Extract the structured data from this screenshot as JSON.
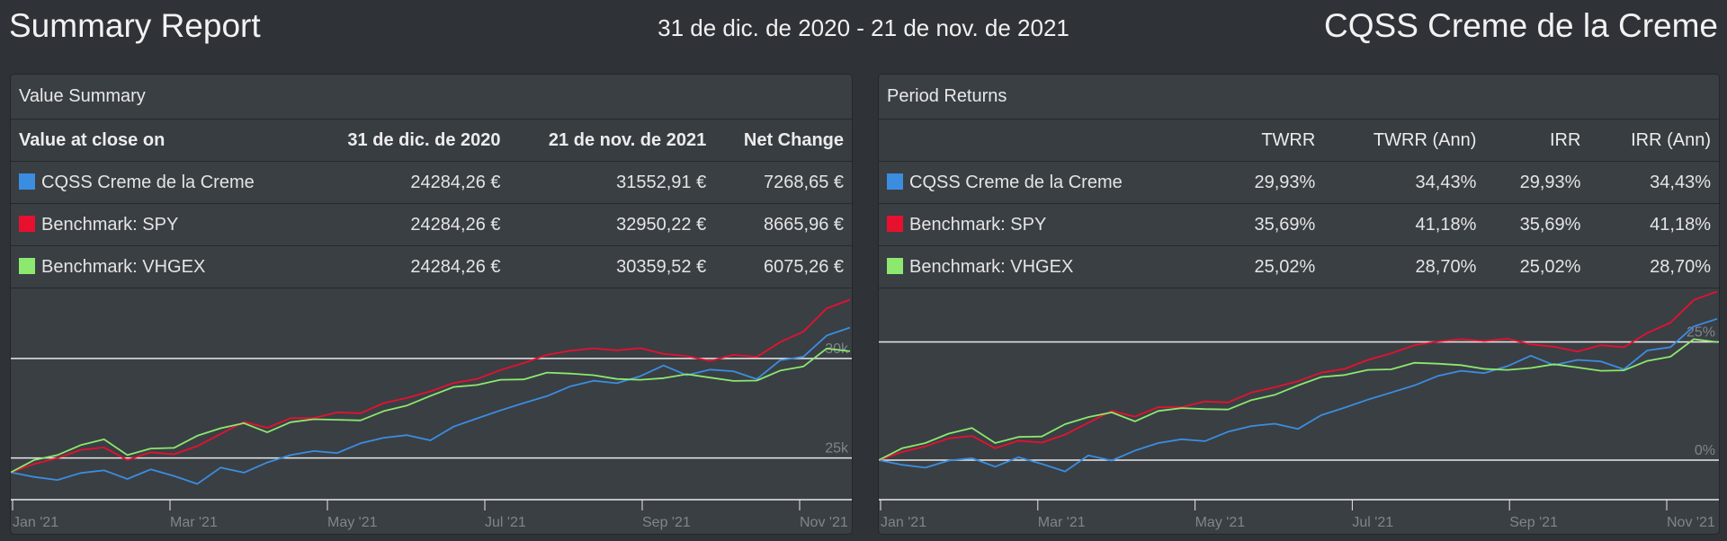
{
  "header": {
    "title": "Summary Report",
    "date_range": "31 de dic. de 2020 - 21 de nov. de 2021",
    "portfolio": "CQSS Creme de la Creme"
  },
  "value_summary": {
    "title": "Value Summary",
    "columns": [
      "Value at close on",
      "31 de dic. de 2020",
      "21 de nov. de 2021",
      "Net Change"
    ],
    "rows": [
      {
        "name": "CQSS Creme de la Creme",
        "color": "#3b8de0",
        "start": "24284,26 €",
        "end": "31552,91 €",
        "change": "7268,65 €"
      },
      {
        "name": "Benchmark: SPY",
        "color": "#e8102f",
        "start": "24284,26 €",
        "end": "32950,22 €",
        "change": "8665,96 €"
      },
      {
        "name": "Benchmark: VHGEX",
        "color": "#8ce86e",
        "start": "24284,26 €",
        "end": "30359,52 €",
        "change": "6075,26 €"
      }
    ]
  },
  "period_returns": {
    "title": "Period Returns",
    "columns": [
      "",
      "TWRR",
      "TWRR (Ann)",
      "IRR",
      "IRR (Ann)"
    ],
    "rows": [
      {
        "name": "CQSS Creme de la Creme",
        "color": "#3b8de0",
        "twrr": "29,93%",
        "twrr_ann": "34,43%",
        "irr": "29,93%",
        "irr_ann": "34,43%"
      },
      {
        "name": "Benchmark: SPY",
        "color": "#e8102f",
        "twrr": "35,69%",
        "twrr_ann": "41,18%",
        "irr": "35,69%",
        "irr_ann": "41,18%"
      },
      {
        "name": "Benchmark: VHGEX",
        "color": "#8ce86e",
        "twrr": "25,02%",
        "twrr_ann": "28,70%",
        "irr": "25,02%",
        "irr_ann": "28,70%"
      }
    ]
  },
  "chart_data": [
    {
      "type": "line",
      "x_labels": [
        "Jan '21",
        "Mar '21",
        "May '21",
        "Jul '21",
        "Sep '21",
        "Nov '21"
      ],
      "y_tick_labels": [
        "25k",
        "30k"
      ],
      "y_ticks": [
        25000,
        30000
      ],
      "ylim": [
        23000,
        33200
      ],
      "series": [
        {
          "name": "CQSS Creme de la Creme",
          "color": "#3b8de0",
          "values": [
            24284,
            24050,
            23900,
            24250,
            24380,
            23950,
            24430,
            24100,
            23700,
            24520,
            24270,
            24780,
            25150,
            25350,
            25250,
            25740,
            26020,
            26150,
            25890,
            26580,
            26990,
            27390,
            27760,
            28110,
            28600,
            28880,
            28760,
            29110,
            29650,
            29160,
            29440,
            29360,
            28960,
            29910,
            30090,
            31150,
            31552
          ]
        },
        {
          "name": "Benchmark: SPY",
          "color": "#e8102f",
          "values": [
            24284,
            24700,
            25000,
            25410,
            25530,
            24900,
            25290,
            25190,
            25600,
            26210,
            26820,
            26520,
            27000,
            27010,
            27290,
            27250,
            27760,
            28020,
            28350,
            28770,
            28970,
            29420,
            29770,
            30180,
            30390,
            30510,
            30410,
            30520,
            30230,
            30120,
            29880,
            30180,
            30080,
            30820,
            31350,
            32520,
            32950
          ]
        },
        {
          "name": "Benchmark: VHGEX",
          "color": "#8ce86e",
          "values": [
            24284,
            24900,
            25150,
            25650,
            25940,
            25150,
            25480,
            25510,
            26120,
            26500,
            26750,
            26290,
            26800,
            26950,
            26920,
            26890,
            27360,
            27640,
            28120,
            28570,
            28670,
            28930,
            28950,
            29290,
            29240,
            29160,
            28970,
            28930,
            29010,
            29210,
            29040,
            28870,
            28890,
            29390,
            29600,
            30500,
            30359
          ]
        }
      ]
    },
    {
      "type": "line",
      "x_labels": [
        "Jan '21",
        "Mar '21",
        "May '21",
        "Jul '21",
        "Sep '21",
        "Nov '21"
      ],
      "y_tick_labels": [
        "0%",
        "25%"
      ],
      "y_ticks": [
        0,
        25
      ],
      "ylim": [
        -8,
        35
      ],
      "series": [
        {
          "name": "CQSS Creme de la Creme",
          "color": "#3b8de0",
          "values": [
            0,
            -1.0,
            -1.6,
            -0.1,
            0.4,
            -1.4,
            0.6,
            -0.8,
            -2.4,
            1.0,
            -0.1,
            2.0,
            3.6,
            4.4,
            4.0,
            6.0,
            7.2,
            7.7,
            6.6,
            9.5,
            11.1,
            12.8,
            14.3,
            15.8,
            17.8,
            18.9,
            18.4,
            19.9,
            22.1,
            20.1,
            21.2,
            20.9,
            19.2,
            23.2,
            23.9,
            28.3,
            29.9
          ]
        },
        {
          "name": "Benchmark: SPY",
          "color": "#e8102f",
          "values": [
            0,
            1.7,
            2.9,
            4.6,
            5.1,
            2.5,
            4.1,
            3.7,
            5.4,
            7.9,
            10.4,
            9.2,
            11.2,
            11.2,
            12.4,
            12.2,
            14.3,
            15.4,
            16.7,
            18.5,
            19.3,
            21.2,
            22.6,
            24.3,
            25.1,
            25.6,
            25.2,
            25.7,
            24.5,
            24.0,
            23.0,
            24.3,
            23.9,
            26.9,
            29.1,
            33.9,
            35.7
          ]
        },
        {
          "name": "Benchmark: VHGEX",
          "color": "#8ce86e",
          "values": [
            0,
            2.5,
            3.6,
            5.6,
            6.8,
            3.6,
            4.9,
            5.0,
            7.6,
            9.1,
            10.1,
            8.2,
            10.4,
            11.0,
            10.8,
            10.7,
            12.7,
            13.8,
            15.8,
            17.6,
            18.0,
            19.1,
            19.2,
            20.6,
            20.4,
            20.1,
            19.3,
            19.1,
            19.5,
            20.3,
            19.6,
            18.9,
            19.0,
            21.0,
            21.9,
            25.6,
            25.0
          ]
        }
      ]
    }
  ]
}
